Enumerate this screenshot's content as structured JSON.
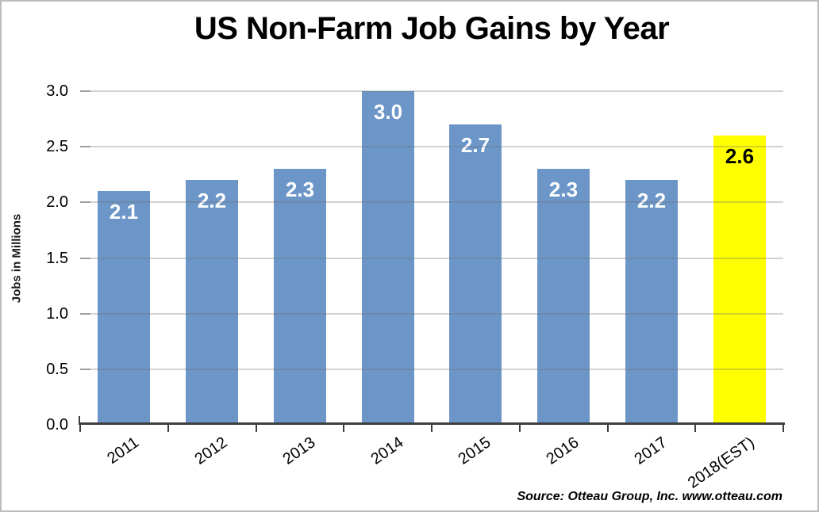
{
  "chart_data": {
    "type": "bar",
    "title": "US Non-Farm Job Gains by Year",
    "ylabel": "Jobs in Millions",
    "categories": [
      "2011",
      "2012",
      "2013",
      "2014",
      "2015",
      "2016",
      "2017",
      "2018(EST)"
    ],
    "values": [
      2.1,
      2.2,
      2.3,
      3.0,
      2.7,
      2.3,
      2.2,
      2.6
    ],
    "bar_labels": [
      "2.1",
      "2.2",
      "2.3",
      "3.0",
      "2.7",
      "2.3",
      "2.2",
      "2.6"
    ],
    "highlight_index": 7,
    "bar_color": "#6D96C8",
    "highlight_color": "#FFFF00",
    "bar_label_color": "#FFFFFF",
    "highlight_label_color": "#000000",
    "axis_color": "#3F3F3F",
    "gridline_color": "rgba(110,110,110,0.30)",
    "grid_stub_color": "#9E9E9E",
    "yticks": [
      "3.0",
      "2.5",
      "2.0",
      "1.5",
      "1.0",
      "0.5",
      "0.0"
    ],
    "ylim": [
      0,
      3.0
    ],
    "grid": true,
    "legend": null,
    "source": "Source: Otteau Group, Inc. www.otteau.com"
  }
}
